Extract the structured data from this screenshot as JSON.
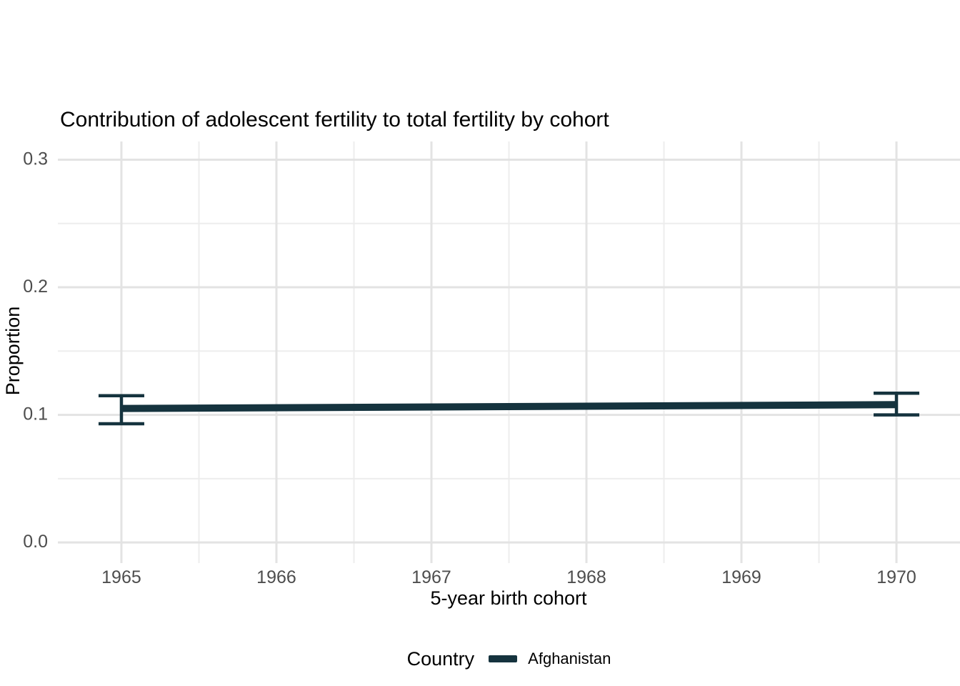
{
  "chart_data": {
    "type": "line",
    "title": "Contribution of adolescent fertility to total fertility by cohort",
    "xlabel": "5-year birth cohort",
    "ylabel": "Proportion",
    "legend": {
      "title": "Country",
      "position": "bottom",
      "entries": [
        "Afghanistan"
      ]
    },
    "series": [
      {
        "name": "Afghanistan",
        "color": "#15333e",
        "x": [
          1965,
          1970
        ],
        "y": [
          0.105,
          0.108
        ],
        "ci_lower": [
          0.093,
          0.1
        ],
        "ci_upper": [
          0.115,
          0.117
        ]
      }
    ],
    "x_ticks": [
      1965,
      1966,
      1967,
      1968,
      1969,
      1970
    ],
    "y_ticks": [
      0,
      0.1,
      0.2,
      0.3
    ],
    "y_tick_labels": [
      "0.0",
      "0.1",
      "0.2",
      "0.3"
    ],
    "x_range": [
      1964.59,
      1970.41
    ],
    "y_range": [
      -0.0162,
      0.3143
    ],
    "grid": {
      "major": true,
      "minor": true
    },
    "colors": {
      "grid_major": "#e3e3e3",
      "grid_minor": "#ededed",
      "axis_text": "#4d4d4d",
      "title_text": "#000000",
      "background": "#ffffff"
    }
  }
}
